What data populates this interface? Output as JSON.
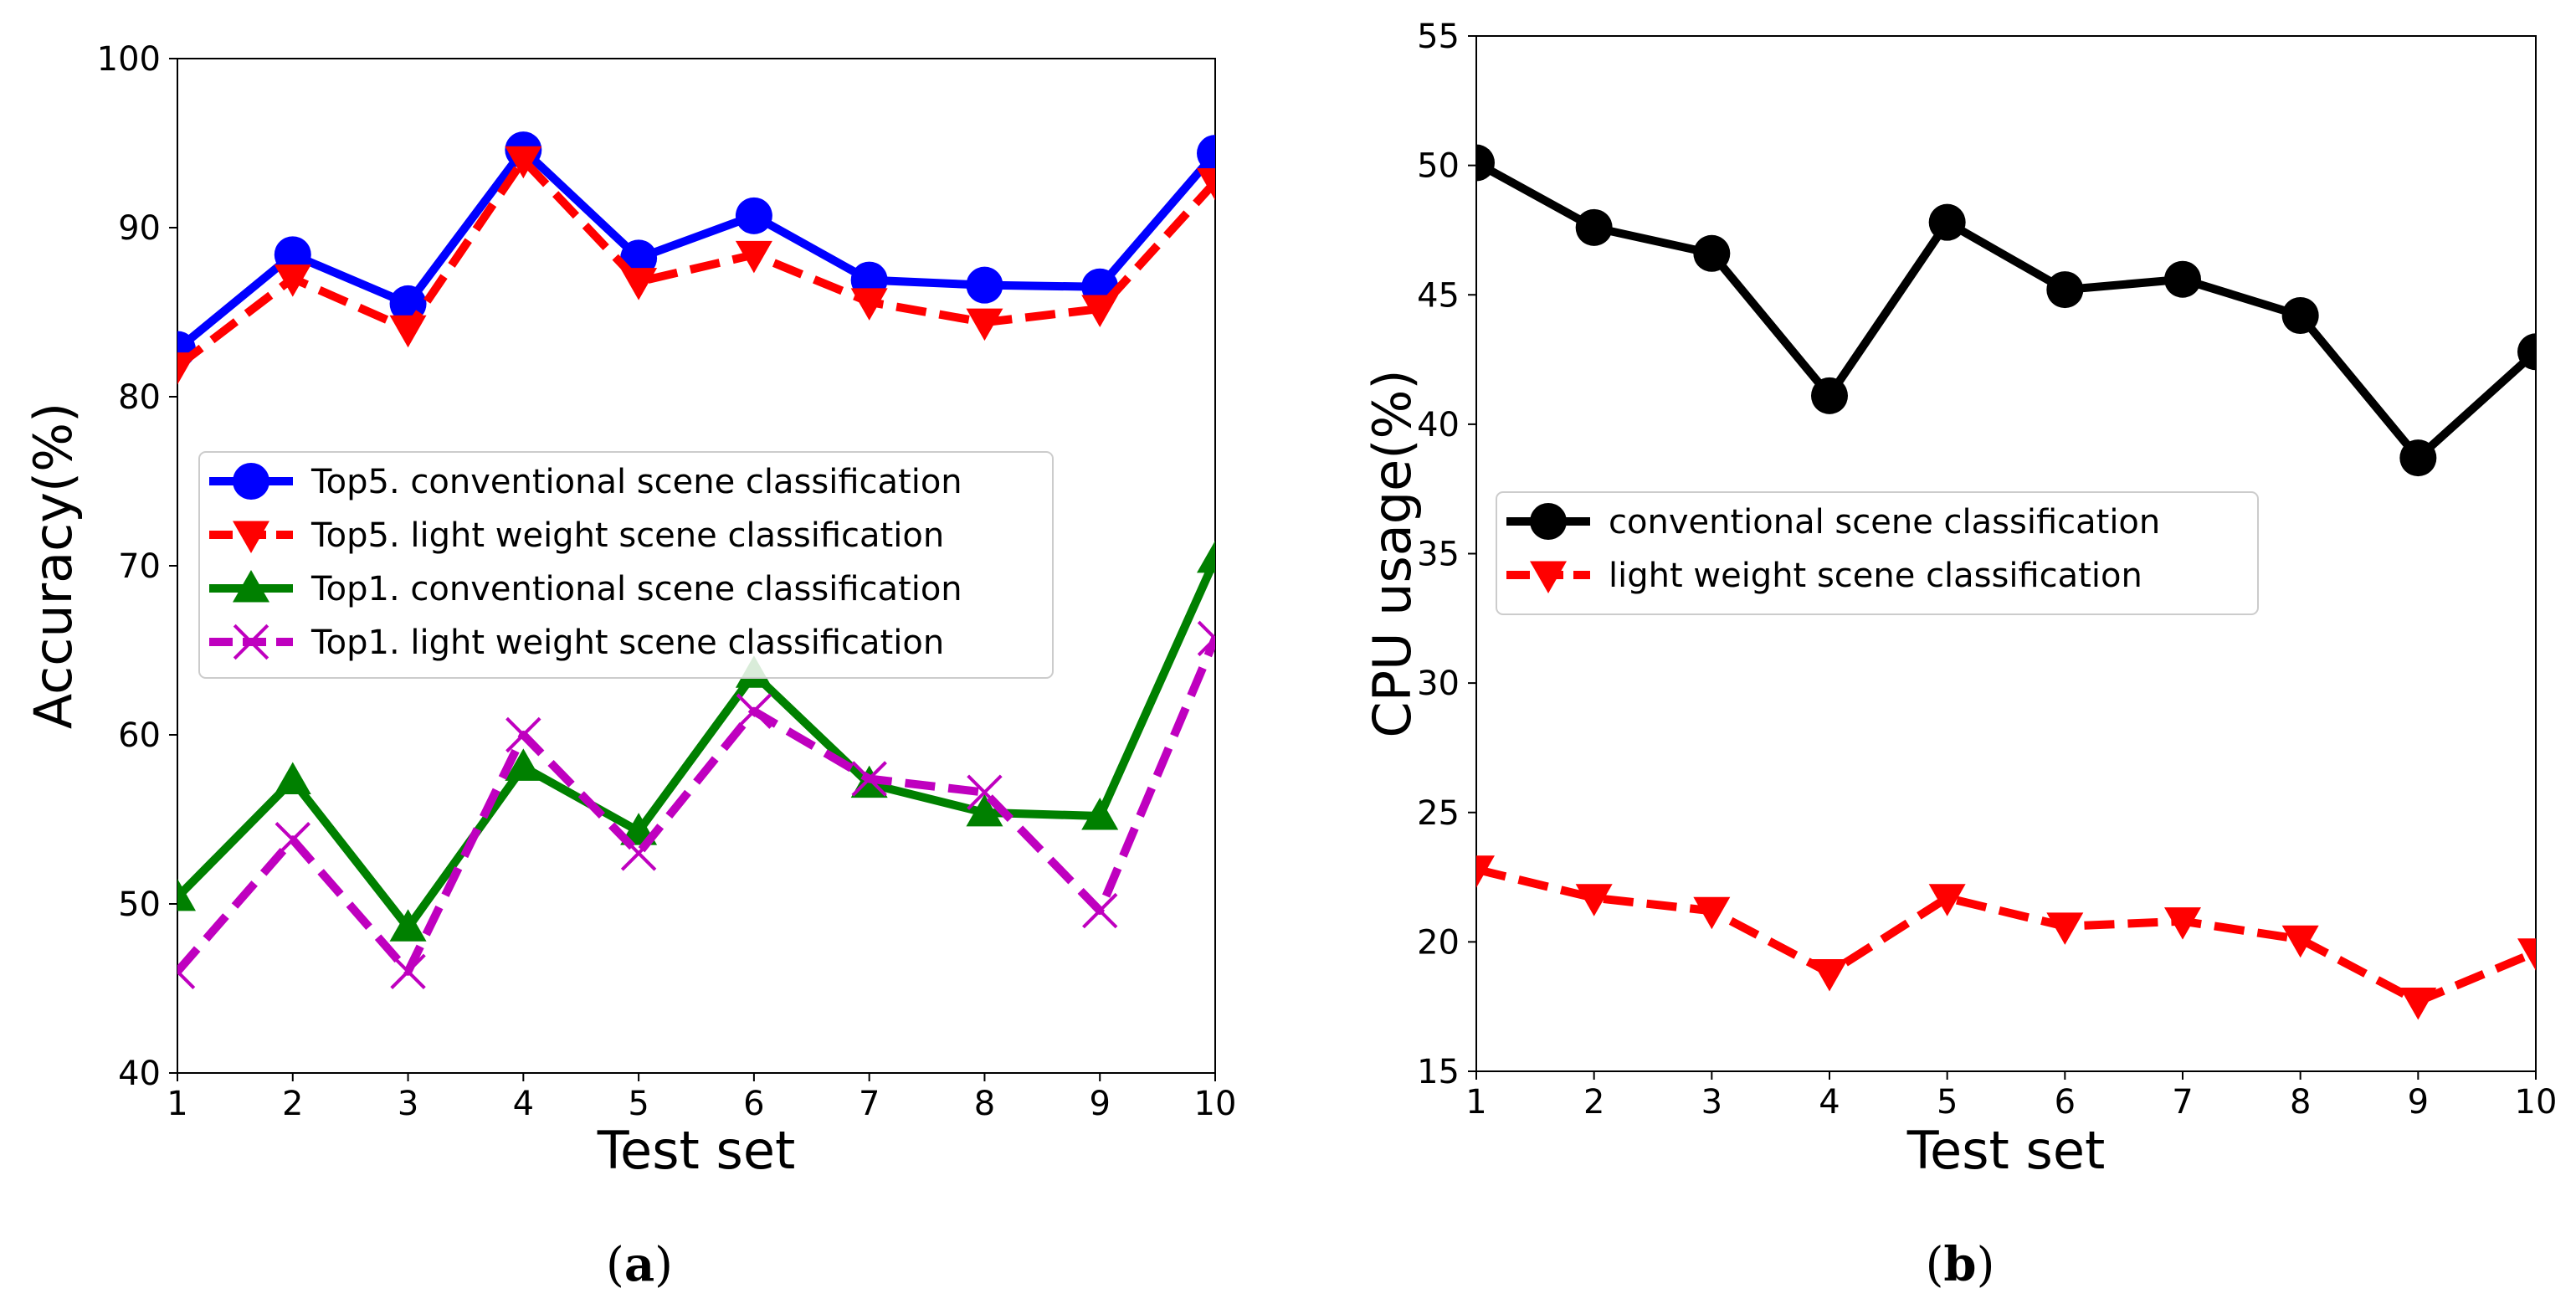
{
  "chart_data": [
    {
      "type": "line",
      "panel_label": "a",
      "xlabel": "Test set",
      "ylabel": "Accuracy(%)",
      "x": [
        1,
        2,
        3,
        4,
        5,
        6,
        7,
        8,
        9,
        10
      ],
      "xlim": [
        1,
        10
      ],
      "ylim": [
        40,
        100
      ],
      "xticks": [
        "1",
        "2",
        "3",
        "4",
        "5",
        "6",
        "7",
        "8",
        "9",
        "10"
      ],
      "yticks": [
        "40",
        "50",
        "60",
        "70",
        "80",
        "90",
        "100"
      ],
      "legend_position": "center-left",
      "series": [
        {
          "name": "Top5. conventional scene classification",
          "color": "#0000ff",
          "marker": "circle",
          "linestyle": "solid",
          "values": [
            82.8,
            88.4,
            85.5,
            94.6,
            88.2,
            90.7,
            86.9,
            86.6,
            86.5,
            94.4
          ]
        },
        {
          "name": "Top5. light weight scene classification",
          "color": "#ff0000",
          "marker": "triangle-down",
          "linestyle": "dashed",
          "values": [
            81.8,
            87.0,
            84.0,
            94.0,
            86.8,
            88.4,
            85.6,
            84.4,
            85.2,
            92.7
          ]
        },
        {
          "name": "Top1. conventional scene classification",
          "color": "#008000",
          "marker": "triangle-up",
          "linestyle": "solid",
          "values": [
            50.4,
            57.3,
            48.6,
            58.1,
            54.3,
            63.6,
            57.1,
            55.4,
            55.2,
            70.4
          ]
        },
        {
          "name": "Top1. light weight scene classification",
          "color": "#bf00bf",
          "marker": "x",
          "linestyle": "dashed",
          "values": [
            46.0,
            53.8,
            46.0,
            60.0,
            53.0,
            61.4,
            57.4,
            56.6,
            49.6,
            65.7
          ]
        }
      ]
    },
    {
      "type": "line",
      "panel_label": "b",
      "xlabel": "Test set",
      "ylabel": "CPU usage(%)",
      "x": [
        1,
        2,
        3,
        4,
        5,
        6,
        7,
        8,
        9,
        10
      ],
      "xlim": [
        1,
        10
      ],
      "ylim": [
        15,
        55
      ],
      "xticks": [
        "1",
        "2",
        "3",
        "4",
        "5",
        "6",
        "7",
        "8",
        "9",
        "10"
      ],
      "yticks": [
        "15",
        "20",
        "25",
        "30",
        "35",
        "40",
        "45",
        "50",
        "55"
      ],
      "legend_position": "center-left",
      "series": [
        {
          "name": "conventional scene classification",
          "color": "#000000",
          "marker": "circle",
          "linestyle": "solid",
          "values": [
            50.1,
            47.6,
            46.6,
            41.1,
            47.8,
            45.2,
            45.6,
            44.2,
            38.7,
            42.8
          ]
        },
        {
          "name": "light weight scene classification",
          "color": "#ff0000",
          "marker": "triangle-down",
          "linestyle": "dashed",
          "values": [
            22.8,
            21.7,
            21.2,
            18.8,
            21.7,
            20.6,
            20.8,
            20.1,
            17.7,
            19.6
          ]
        }
      ]
    }
  ]
}
